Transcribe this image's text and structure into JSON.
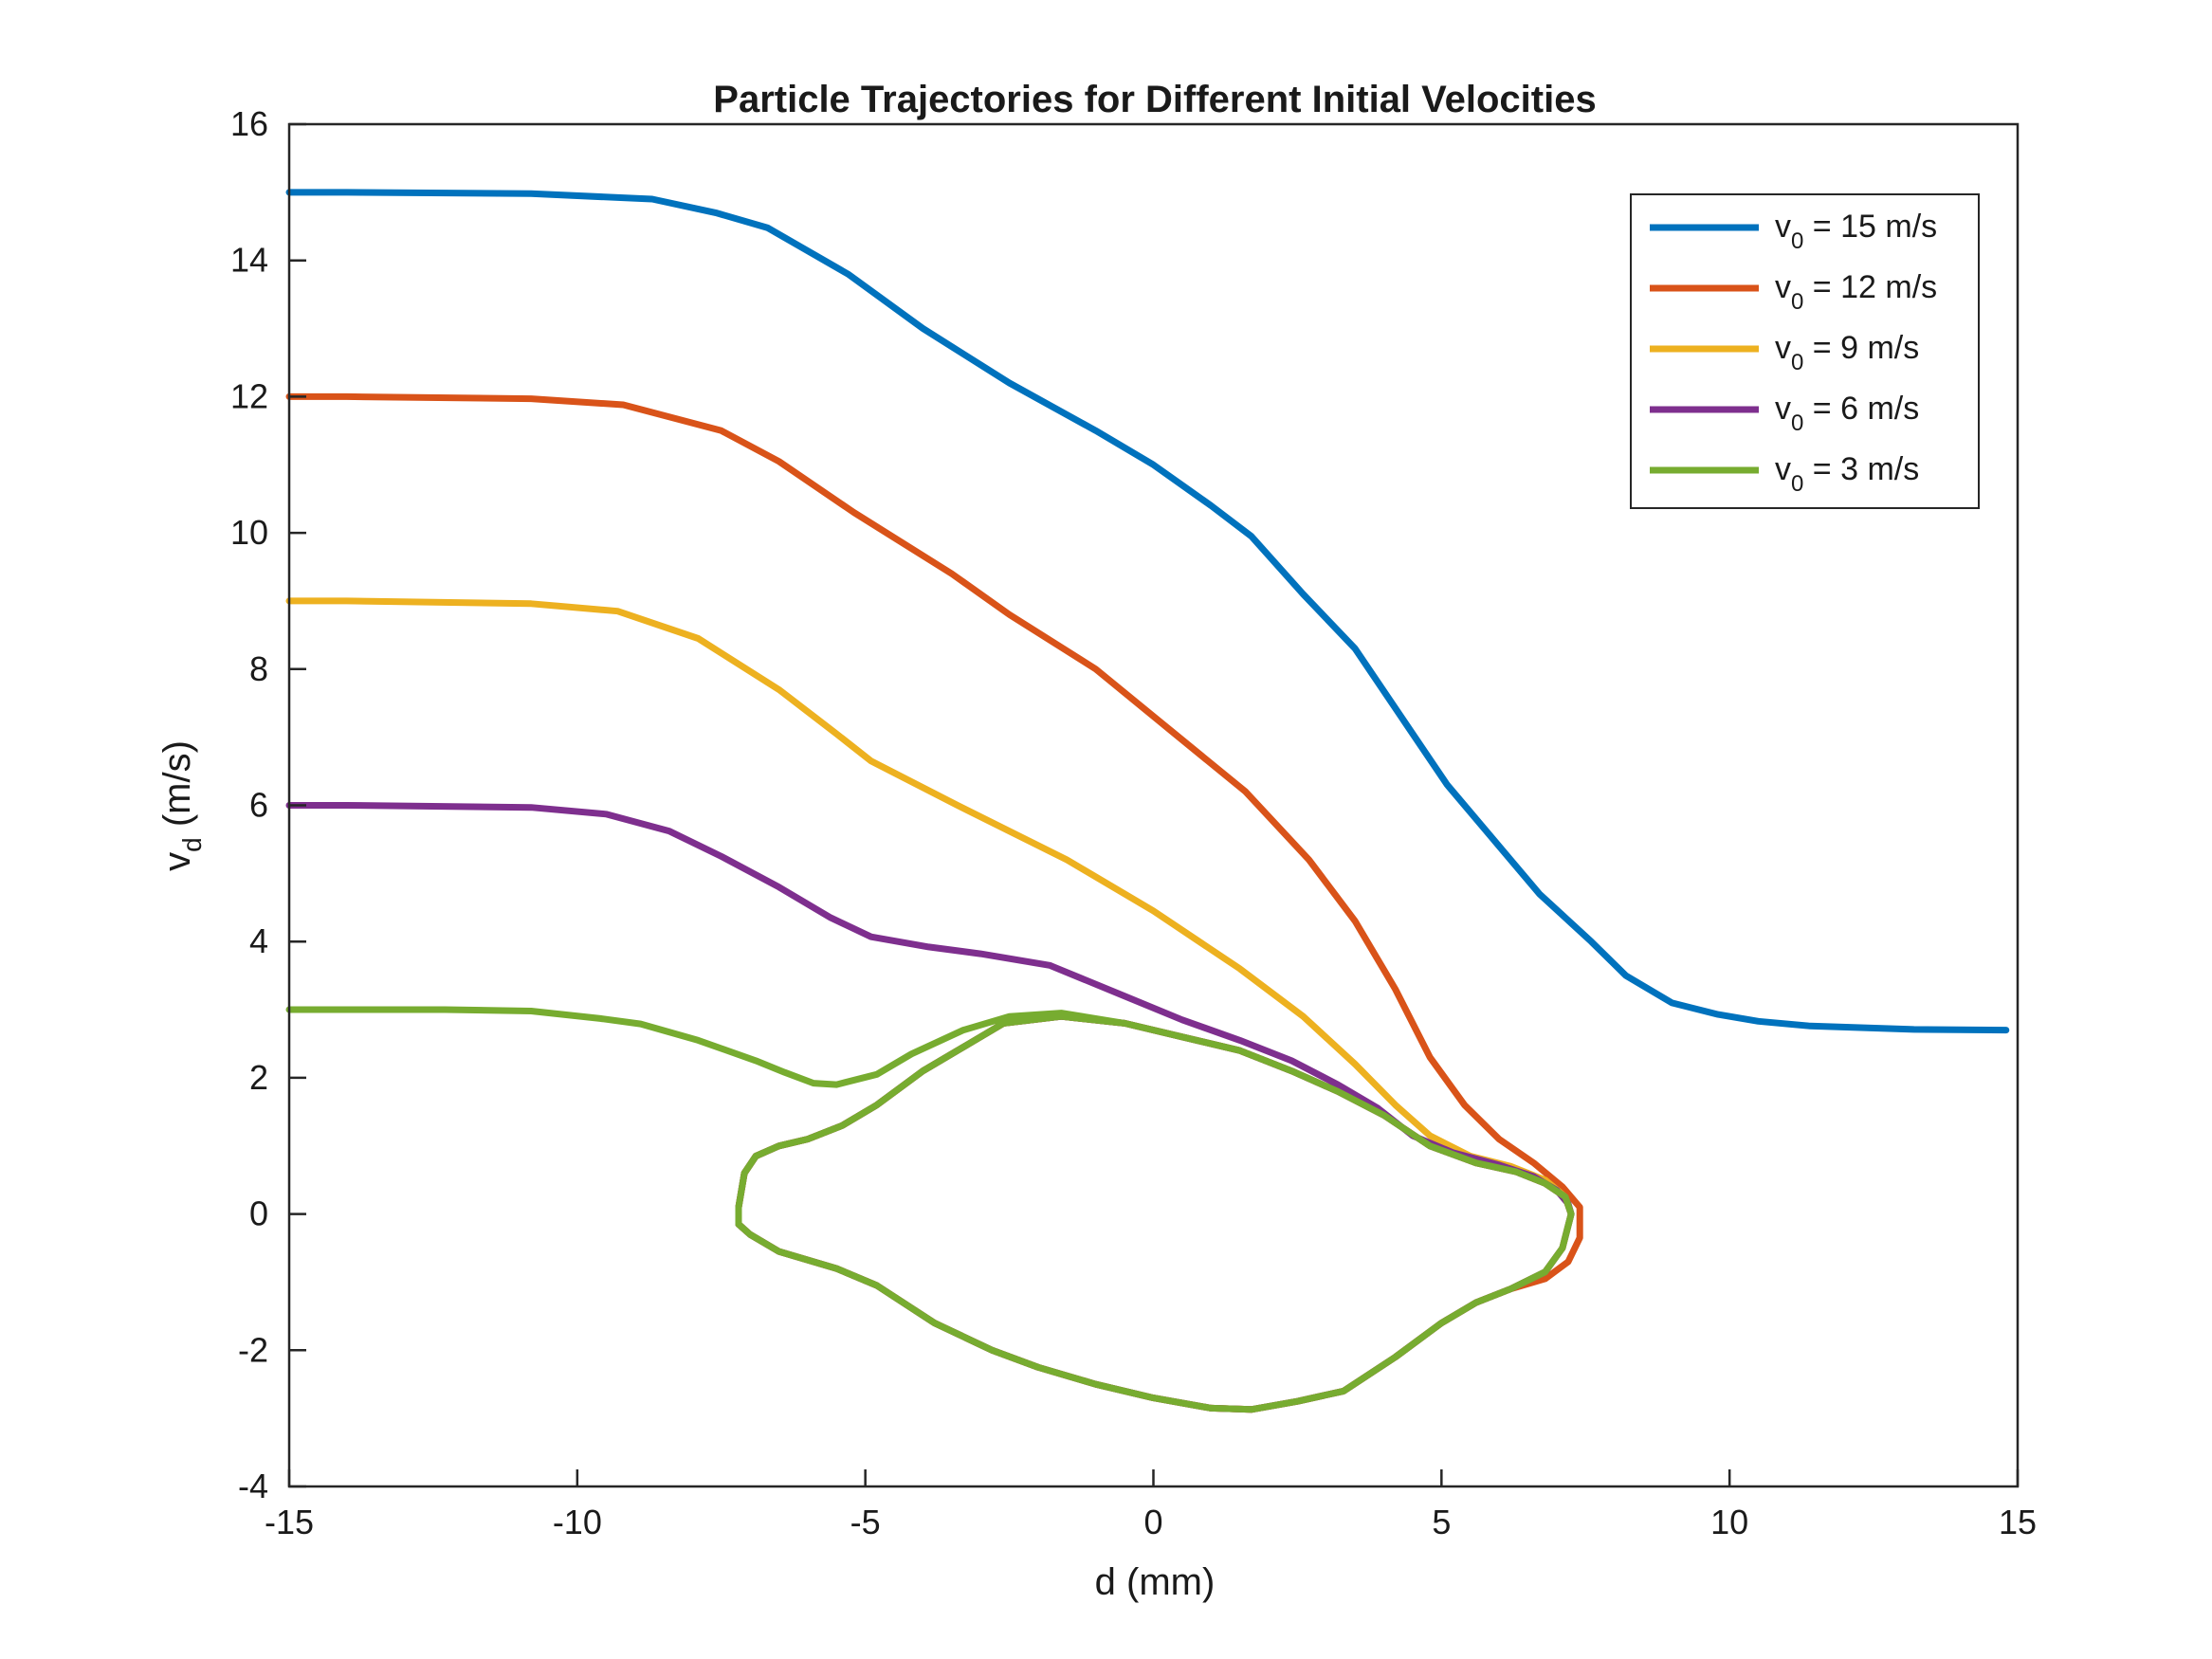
{
  "chart_data": {
    "type": "line",
    "title": "Particle Trajectories for Different Initial Velocities",
    "xlabel": "d (mm)",
    "ylabel": {
      "main": "v",
      "sub": "d",
      "rest": " (m/s)"
    },
    "xlim": [
      -15,
      15
    ],
    "ylim": [
      -4,
      16
    ],
    "xticks": [
      -15,
      -10,
      -5,
      0,
      5,
      10,
      15
    ],
    "yticks": [
      -4,
      -2,
      0,
      2,
      4,
      6,
      8,
      10,
      12,
      14,
      16
    ],
    "grid": false,
    "legend_position": "top-right",
    "series": [
      {
        "name": {
          "main": "v",
          "sub": "0",
          "rest": " = 15 m/s"
        },
        "color": "#0072BD",
        "points": [
          [
            -15,
            15
          ],
          [
            -14,
            15
          ],
          [
            -10.8,
            14.98
          ],
          [
            -8.7,
            14.9
          ],
          [
            -7.6,
            14.7
          ],
          [
            -6.7,
            14.48
          ],
          [
            -5.3,
            13.8
          ],
          [
            -4,
            13
          ],
          [
            -2.5,
            12.2
          ],
          [
            -1,
            11.5
          ],
          [
            0,
            11
          ],
          [
            1,
            10.4
          ],
          [
            1.7,
            9.95
          ],
          [
            2.6,
            9.1
          ],
          [
            3.5,
            8.3
          ],
          [
            4.3,
            7.3
          ],
          [
            5.1,
            6.3
          ],
          [
            5.9,
            5.5
          ],
          [
            6.7,
            4.7
          ],
          [
            7.6,
            4
          ],
          [
            8.2,
            3.5
          ],
          [
            9,
            3.1
          ],
          [
            9.8,
            2.93
          ],
          [
            10.5,
            2.83
          ],
          [
            11.4,
            2.76
          ],
          [
            13.2,
            2.71
          ],
          [
            14.8,
            2.7
          ]
        ]
      },
      {
        "name": {
          "main": "v",
          "sub": "0",
          "rest": " = 12 m/s"
        },
        "color": "#D95319",
        "points": [
          [
            -15,
            12
          ],
          [
            -14,
            12
          ],
          [
            -10.8,
            11.97
          ],
          [
            -9.2,
            11.88
          ],
          [
            -7.5,
            11.5
          ],
          [
            -6.5,
            11.05
          ],
          [
            -5.2,
            10.3
          ],
          [
            -3.5,
            9.4
          ],
          [
            -2.5,
            8.8
          ],
          [
            -1,
            8
          ],
          [
            0.3,
            7.1
          ],
          [
            1.6,
            6.2
          ],
          [
            2.7,
            5.2
          ],
          [
            3.5,
            4.3
          ],
          [
            4.2,
            3.3
          ],
          [
            4.8,
            2.3
          ],
          [
            5.4,
            1.6
          ],
          [
            6,
            1.1
          ],
          [
            6.6,
            0.75
          ],
          [
            7.1,
            0.4
          ],
          [
            7.4,
            0.1
          ],
          [
            7.4,
            -0.35
          ],
          [
            7.2,
            -0.7
          ],
          [
            6.8,
            -0.95
          ],
          [
            6.2,
            -1.1
          ],
          [
            5.6,
            -1.3
          ],
          [
            5,
            -1.6
          ],
          [
            4.2,
            -2.1
          ],
          [
            3.3,
            -2.6
          ],
          [
            2.5,
            -2.75
          ],
          [
            1.7,
            -2.87
          ],
          [
            1,
            -2.85
          ],
          [
            0,
            -2.7
          ],
          [
            -1,
            -2.5
          ],
          [
            -2,
            -2.25
          ],
          [
            -2.8,
            -2
          ],
          [
            -3.8,
            -1.6
          ],
          [
            -4.8,
            -1.05
          ],
          [
            -5.5,
            -0.8
          ],
          [
            -6.5,
            -0.55
          ],
          [
            -7,
            -0.3
          ],
          [
            -7.2,
            -0.15
          ],
          [
            -7.2,
            0.1
          ],
          [
            -7.1,
            0.6
          ],
          [
            -6.9,
            0.85
          ],
          [
            -6.5,
            1
          ],
          [
            -6,
            1.1
          ],
          [
            -5.4,
            1.3
          ],
          [
            -4.8,
            1.6
          ],
          [
            -4,
            2.1
          ],
          [
            -3.2,
            2.5
          ],
          [
            -2.6,
            2.8
          ],
          [
            -1.6,
            2.9
          ],
          [
            -0.5,
            2.8
          ],
          [
            0.5,
            2.6
          ],
          [
            1.5,
            2.4
          ],
          [
            2.4,
            2.1
          ],
          [
            3.2,
            1.8
          ],
          [
            4,
            1.45
          ],
          [
            4.8,
            1
          ],
          [
            5.6,
            0.75
          ],
          [
            6.3,
            0.62
          ],
          [
            6.8,
            0.45
          ],
          [
            7.15,
            0.25
          ],
          [
            7.25,
            0
          ]
        ]
      },
      {
        "name": {
          "main": "v",
          "sub": "0",
          "rest": " = 9 m/s"
        },
        "color": "#EDB120",
        "points": [
          [
            -15,
            9
          ],
          [
            -14,
            9
          ],
          [
            -10.8,
            8.96
          ],
          [
            -9.3,
            8.85
          ],
          [
            -7.9,
            8.45
          ],
          [
            -6.5,
            7.7
          ],
          [
            -5.5,
            7.05
          ],
          [
            -4.9,
            6.65
          ],
          [
            -3.4,
            6
          ],
          [
            -1.5,
            5.2
          ],
          [
            0,
            4.45
          ],
          [
            1.5,
            3.6
          ],
          [
            2.6,
            2.9
          ],
          [
            3.5,
            2.2
          ],
          [
            4.2,
            1.6
          ],
          [
            4.8,
            1.15
          ],
          [
            5.5,
            0.85
          ],
          [
            6.2,
            0.7
          ],
          [
            6.8,
            0.5
          ],
          [
            7.15,
            0.25
          ],
          [
            7.25,
            0
          ],
          [
            7.1,
            -0.5
          ],
          [
            6.8,
            -0.85
          ],
          [
            6.2,
            -1.1
          ],
          [
            5.6,
            -1.3
          ],
          [
            5,
            -1.6
          ],
          [
            4.2,
            -2.1
          ],
          [
            3.3,
            -2.6
          ],
          [
            2.5,
            -2.75
          ],
          [
            1.7,
            -2.87
          ],
          [
            1,
            -2.85
          ],
          [
            0,
            -2.7
          ],
          [
            -1,
            -2.5
          ],
          [
            -2,
            -2.25
          ],
          [
            -2.8,
            -2
          ],
          [
            -3.8,
            -1.6
          ],
          [
            -4.8,
            -1.05
          ],
          [
            -5.5,
            -0.8
          ],
          [
            -6.5,
            -0.55
          ],
          [
            -7,
            -0.3
          ],
          [
            -7.2,
            -0.15
          ],
          [
            -7.2,
            0.1
          ],
          [
            -7.1,
            0.6
          ],
          [
            -6.9,
            0.85
          ],
          [
            -6.5,
            1
          ],
          [
            -6,
            1.1
          ],
          [
            -5.4,
            1.3
          ],
          [
            -4.8,
            1.6
          ],
          [
            -4,
            2.1
          ],
          [
            -3.2,
            2.5
          ],
          [
            -2.6,
            2.8
          ],
          [
            -1.6,
            2.9
          ],
          [
            -0.5,
            2.8
          ],
          [
            0.5,
            2.6
          ],
          [
            1.5,
            2.4
          ],
          [
            2.4,
            2.1
          ],
          [
            3.2,
            1.8
          ],
          [
            4,
            1.45
          ],
          [
            4.8,
            1
          ],
          [
            5.6,
            0.75
          ],
          [
            6.3,
            0.62
          ],
          [
            6.8,
            0.45
          ],
          [
            7.15,
            0.25
          ],
          [
            7.25,
            0
          ]
        ]
      },
      {
        "name": {
          "main": "v",
          "sub": "0",
          "rest": " = 6 m/s"
        },
        "color": "#7E2F8E",
        "points": [
          [
            -15,
            6
          ],
          [
            -14,
            6
          ],
          [
            -10.8,
            5.97
          ],
          [
            -9.5,
            5.87
          ],
          [
            -8.4,
            5.62
          ],
          [
            -7.5,
            5.25
          ],
          [
            -6.5,
            4.8
          ],
          [
            -5.6,
            4.35
          ],
          [
            -4.9,
            4.07
          ],
          [
            -3.9,
            3.92
          ],
          [
            -3,
            3.82
          ],
          [
            -1.8,
            3.65
          ],
          [
            -0.5,
            3.2
          ],
          [
            0.5,
            2.85
          ],
          [
            1.5,
            2.55
          ],
          [
            2.4,
            2.25
          ],
          [
            3.2,
            1.9
          ],
          [
            3.9,
            1.55
          ],
          [
            4.5,
            1.15
          ],
          [
            5.2,
            0.9
          ],
          [
            6,
            0.72
          ],
          [
            6.6,
            0.55
          ],
          [
            7,
            0.35
          ],
          [
            7.2,
            0.15
          ],
          [
            7.25,
            0
          ],
          [
            7.1,
            -0.5
          ],
          [
            6.8,
            -0.85
          ],
          [
            6.2,
            -1.1
          ],
          [
            5.6,
            -1.3
          ],
          [
            5,
            -1.6
          ],
          [
            4.2,
            -2.1
          ],
          [
            3.3,
            -2.6
          ],
          [
            2.5,
            -2.75
          ],
          [
            1.7,
            -2.87
          ],
          [
            1,
            -2.85
          ],
          [
            0,
            -2.7
          ],
          [
            -1,
            -2.5
          ],
          [
            -2,
            -2.25
          ],
          [
            -2.8,
            -2
          ],
          [
            -3.8,
            -1.6
          ],
          [
            -4.8,
            -1.05
          ],
          [
            -5.5,
            -0.8
          ],
          [
            -6.5,
            -0.55
          ],
          [
            -7,
            -0.3
          ],
          [
            -7.2,
            -0.15
          ],
          [
            -7.2,
            0.1
          ],
          [
            -7.1,
            0.6
          ],
          [
            -6.9,
            0.85
          ],
          [
            -6.5,
            1
          ],
          [
            -6,
            1.1
          ],
          [
            -5.4,
            1.3
          ],
          [
            -4.8,
            1.6
          ],
          [
            -4,
            2.1
          ],
          [
            -3.2,
            2.5
          ],
          [
            -2.6,
            2.8
          ],
          [
            -1.6,
            2.9
          ],
          [
            -0.5,
            2.8
          ],
          [
            0.5,
            2.6
          ],
          [
            1.5,
            2.4
          ],
          [
            2.4,
            2.1
          ],
          [
            3.2,
            1.8
          ],
          [
            4,
            1.45
          ],
          [
            4.8,
            1
          ],
          [
            5.6,
            0.75
          ],
          [
            6.3,
            0.62
          ],
          [
            6.8,
            0.45
          ],
          [
            7.15,
            0.25
          ],
          [
            7.25,
            0
          ]
        ]
      },
      {
        "name": {
          "main": "v",
          "sub": "0",
          "rest": " = 3 m/s"
        },
        "color": "#77AC30",
        "points": [
          [
            -15,
            3
          ],
          [
            -14,
            3
          ],
          [
            -12.3,
            3
          ],
          [
            -10.8,
            2.98
          ],
          [
            -9.6,
            2.87
          ],
          [
            -8.9,
            2.79
          ],
          [
            -7.9,
            2.55
          ],
          [
            -6.9,
            2.25
          ],
          [
            -6.4,
            2.08
          ],
          [
            -5.9,
            1.92
          ],
          [
            -5.5,
            1.9
          ],
          [
            -4.8,
            2.05
          ],
          [
            -4.2,
            2.35
          ],
          [
            -3.3,
            2.7
          ],
          [
            -2.5,
            2.9
          ],
          [
            -1.6,
            2.95
          ],
          [
            -0.5,
            2.8
          ],
          [
            0.5,
            2.6
          ],
          [
            1.5,
            2.4
          ],
          [
            2.4,
            2.1
          ],
          [
            3.2,
            1.8
          ],
          [
            4,
            1.45
          ],
          [
            4.8,
            1
          ],
          [
            5.6,
            0.75
          ],
          [
            6.3,
            0.62
          ],
          [
            6.8,
            0.45
          ],
          [
            7.15,
            0.25
          ],
          [
            7.25,
            0
          ],
          [
            7.1,
            -0.5
          ],
          [
            6.8,
            -0.85
          ],
          [
            6.2,
            -1.1
          ],
          [
            5.6,
            -1.3
          ],
          [
            5,
            -1.6
          ],
          [
            4.2,
            -2.1
          ],
          [
            3.3,
            -2.6
          ],
          [
            2.5,
            -2.75
          ],
          [
            1.7,
            -2.87
          ],
          [
            1,
            -2.85
          ],
          [
            0,
            -2.7
          ],
          [
            -1,
            -2.5
          ],
          [
            -2,
            -2.25
          ],
          [
            -2.8,
            -2
          ],
          [
            -3.8,
            -1.6
          ],
          [
            -4.8,
            -1.05
          ],
          [
            -5.5,
            -0.8
          ],
          [
            -6.5,
            -0.55
          ],
          [
            -7,
            -0.3
          ],
          [
            -7.2,
            -0.15
          ],
          [
            -7.2,
            0.1
          ],
          [
            -7.1,
            0.6
          ],
          [
            -6.9,
            0.85
          ],
          [
            -6.5,
            1
          ],
          [
            -6,
            1.1
          ],
          [
            -5.4,
            1.3
          ],
          [
            -4.8,
            1.6
          ],
          [
            -4,
            2.1
          ],
          [
            -3.2,
            2.5
          ],
          [
            -2.6,
            2.8
          ],
          [
            -1.6,
            2.9
          ],
          [
            -0.5,
            2.8
          ],
          [
            0.5,
            2.6
          ],
          [
            1.5,
            2.4
          ],
          [
            2.4,
            2.1
          ],
          [
            3.2,
            1.8
          ],
          [
            4,
            1.45
          ],
          [
            4.8,
            1
          ],
          [
            5.6,
            0.75
          ],
          [
            6.3,
            0.62
          ],
          [
            6.8,
            0.45
          ],
          [
            7.15,
            0.25
          ],
          [
            7.25,
            0
          ]
        ]
      }
    ]
  }
}
